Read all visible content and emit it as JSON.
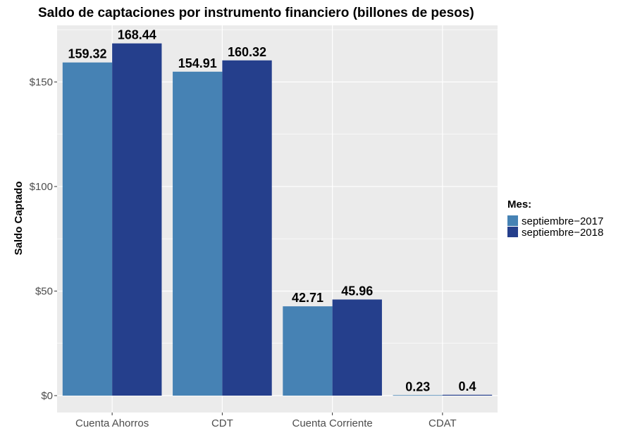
{
  "chart_data": {
    "type": "bar",
    "title": "Saldo de captaciones por instrumento financiero (billones de pesos)",
    "xlabel": "",
    "ylabel": "Saldo Captado",
    "categories": [
      "Cuenta Ahorros",
      "CDT",
      "Cuenta Corriente",
      "CDAT"
    ],
    "series": [
      {
        "name": "septiembre−2017",
        "values": [
          159.32,
          154.91,
          42.71,
          0.23
        ],
        "labels": [
          "159.32",
          "154.91",
          "42.71",
          "0.23"
        ],
        "color": "#4682b4"
      },
      {
        "name": "septiembre−2018",
        "values": [
          168.44,
          160.32,
          45.96,
          0.4
        ],
        "labels": [
          "168.44",
          "160.32",
          "45.96",
          "0.4"
        ],
        "color": "#253f8c"
      }
    ],
    "ylim": [
      0,
      176.4
    ],
    "yticks": [
      0,
      50,
      100,
      150
    ],
    "ytick_labels": [
      "$0",
      "$50",
      "$100",
      "$150"
    ],
    "legend": {
      "title": "Mes:",
      "placement": "right"
    },
    "grid": true,
    "panel_background": "#ebebeb",
    "grid_color": "#ffffff"
  }
}
